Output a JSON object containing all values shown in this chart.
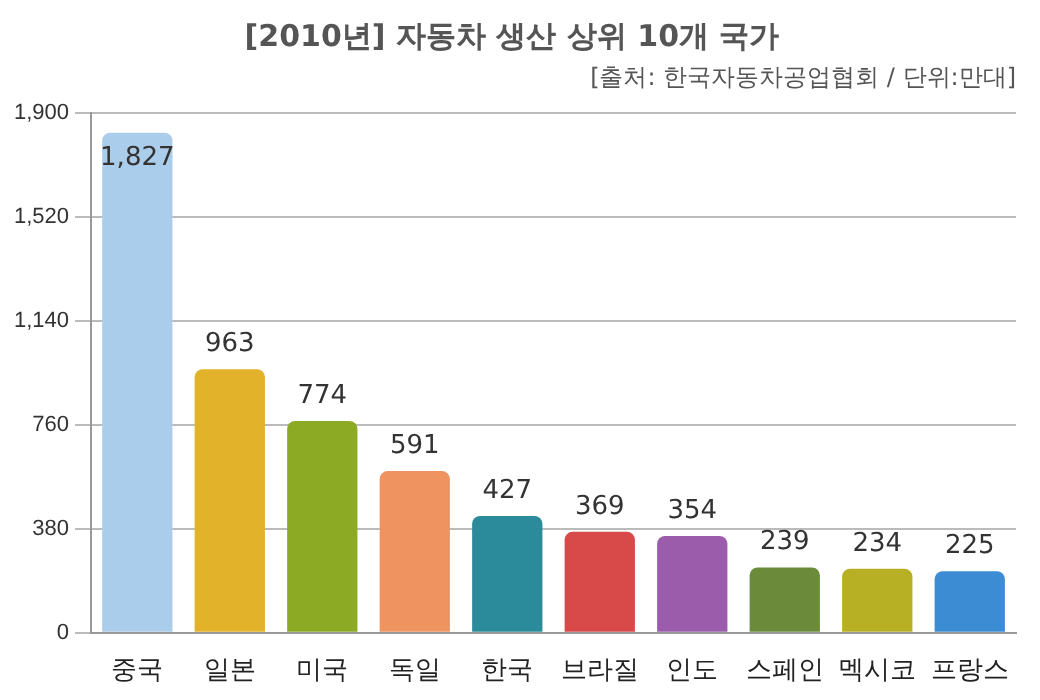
{
  "chart_data": {
    "type": "bar",
    "title": "[2010년] 자동차 생산 상위 10개 국가",
    "subtitle": "[출처: 한국자동차공업협회 / 단위:만대]",
    "categories": [
      "중국",
      "일본",
      "미국",
      "독일",
      "한국",
      "브라질",
      "인도",
      "스페인",
      "멕시코",
      "프랑스"
    ],
    "values": [
      1827,
      963,
      774,
      591,
      427,
      369,
      354,
      239,
      234,
      225
    ],
    "colors": [
      "#a9cdea",
      "#e2b32a",
      "#8caa24",
      "#ef9460",
      "#2b8b9b",
      "#d84a4a",
      "#9a5cab",
      "#6b8b3b",
      "#b7b024",
      "#3b8cd2"
    ],
    "ylim": [
      0,
      1900
    ],
    "yticks": [
      0,
      {
        "value": 380,
        "label": "380"
      },
      {
        "value": 760,
        "label": "760"
      },
      {
        "value": 1140,
        "label": "1,140"
      },
      {
        "value": 1520,
        "label": "1,520"
      },
      {
        "value": 1900,
        "label": "1,900"
      }
    ],
    "value_labels": [
      "1,827",
      "963",
      "774",
      "591",
      "427",
      "369",
      "354",
      "239",
      "234",
      "225"
    ],
    "grid": "y",
    "legend": false
  }
}
